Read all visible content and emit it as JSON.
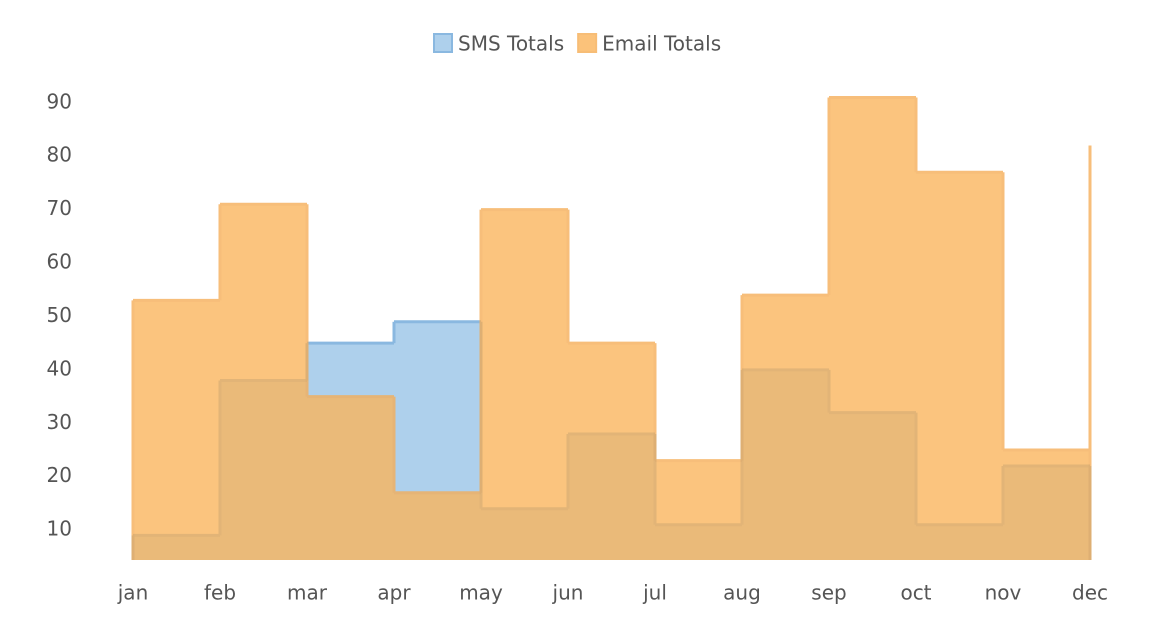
{
  "chart_data": {
    "type": "step-area",
    "categories": [
      "jan",
      "feb",
      "mar",
      "apr",
      "may",
      "jun",
      "jul",
      "aug",
      "sep",
      "oct",
      "nov",
      "dec"
    ],
    "series": [
      {
        "name": "SMS Totals",
        "color": "#8ab8e0",
        "fill": "#aed0ec",
        "values": [
          9,
          38,
          45,
          49,
          14,
          28,
          11,
          40,
          32,
          11,
          22,
          22
        ]
      },
      {
        "name": "Email Totals",
        "color": "#f6ad55",
        "fill": "#fbb45a",
        "values": [
          53,
          71,
          35,
          17,
          70,
          45,
          23,
          54,
          91,
          77,
          25,
          82
        ]
      }
    ],
    "ylim": [
      4.4,
      93
    ],
    "yticks": [
      10,
      20,
      30,
      40,
      50,
      60,
      70,
      80,
      90
    ],
    "legend": "top"
  }
}
